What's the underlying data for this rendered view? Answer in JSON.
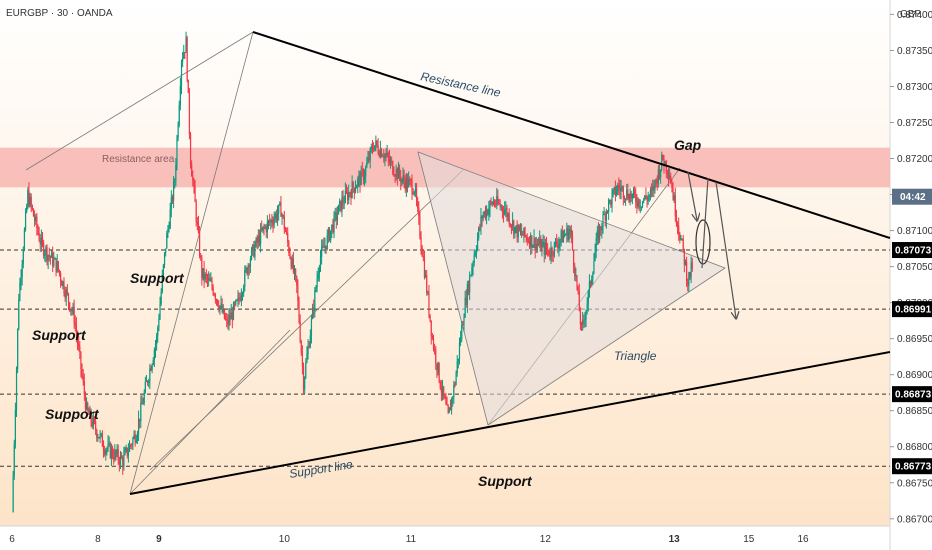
{
  "header": {
    "symbol": "EURGBP · 30 · OANDA"
  },
  "axis": {
    "currency": "GBP"
  },
  "colors": {
    "up": "#089981",
    "down": "#f23645",
    "resistance_area": "#f8b6b2",
    "background_top": "#ffffff",
    "background_bottom": "#fde4c8",
    "price_tag": "#000000",
    "trend_line": "#000000",
    "helper_line": "#7a7a7a",
    "triangle_fill": "#e4dcdc"
  },
  "chart_data": {
    "type": "candlestick",
    "instrument": "EURGBP",
    "timeframe": "30",
    "source": "OANDA",
    "ylim": [
      0.8669,
      0.8742
    ],
    "y_ticks": [
      0.874,
      0.8735,
      0.873,
      0.8725,
      0.872,
      0.8715,
      0.871,
      0.8705,
      0.87,
      0.8695,
      0.869,
      0.8685,
      0.868,
      0.8675,
      0.867
    ],
    "y_tick_labels": [
      "0.87400",
      "0.87350",
      "0.87300",
      "0.87250",
      "0.87200",
      "0.87150",
      "0.87100",
      "0.87050",
      "0.87000",
      "0.86950",
      "0.86900",
      "0.86850",
      "0.86800",
      "0.86750",
      "0.86700"
    ],
    "x_ticks": [
      {
        "label": "6",
        "bar": 0
      },
      {
        "label": "8",
        "bar": 76
      },
      {
        "label": "9",
        "bar": 130
      },
      {
        "label": "10",
        "bar": 241
      },
      {
        "label": "11",
        "bar": 353
      },
      {
        "label": "12",
        "bar": 472
      },
      {
        "label": "13",
        "bar": 586
      },
      {
        "label": "15",
        "bar": 652
      },
      {
        "label": "16",
        "bar": 700
      }
    ],
    "bars_total": 780,
    "price_path": [
      [
        0,
        0.8671
      ],
      [
        6,
        0.8701
      ],
      [
        14,
        0.8715
      ],
      [
        26,
        0.8708
      ],
      [
        40,
        0.8705
      ],
      [
        55,
        0.8698
      ],
      [
        66,
        0.8685
      ],
      [
        82,
        0.868
      ],
      [
        98,
        0.8678
      ],
      [
        110,
        0.8682
      ],
      [
        118,
        0.8688
      ],
      [
        128,
        0.8695
      ],
      [
        136,
        0.8708
      ],
      [
        144,
        0.8717
      ],
      [
        150,
        0.8734
      ],
      [
        154,
        0.8736
      ],
      [
        158,
        0.872
      ],
      [
        168,
        0.8704
      ],
      [
        178,
        0.8702
      ],
      [
        190,
        0.8697
      ],
      [
        200,
        0.87
      ],
      [
        210,
        0.8706
      ],
      [
        222,
        0.871
      ],
      [
        238,
        0.8713
      ],
      [
        252,
        0.8702
      ],
      [
        258,
        0.8689
      ],
      [
        264,
        0.8696
      ],
      [
        272,
        0.8706
      ],
      [
        282,
        0.871
      ],
      [
        292,
        0.8714
      ],
      [
        302,
        0.8716
      ],
      [
        312,
        0.8718
      ],
      [
        320,
        0.8722
      ],
      [
        328,
        0.8721
      ],
      [
        336,
        0.8719
      ],
      [
        346,
        0.8717
      ],
      [
        356,
        0.8716
      ],
      [
        364,
        0.8706
      ],
      [
        372,
        0.8695
      ],
      [
        380,
        0.8688
      ],
      [
        386,
        0.8684
      ],
      [
        392,
        0.8689
      ],
      [
        400,
        0.8699
      ],
      [
        408,
        0.8706
      ],
      [
        416,
        0.8712
      ],
      [
        426,
        0.8714
      ],
      [
        436,
        0.8713
      ],
      [
        446,
        0.871
      ],
      [
        456,
        0.8709
      ],
      [
        466,
        0.8708
      ],
      [
        476,
        0.8707
      ],
      [
        486,
        0.8709
      ],
      [
        494,
        0.871
      ],
      [
        500,
        0.8702
      ],
      [
        504,
        0.8696
      ],
      [
        510,
        0.8701
      ],
      [
        518,
        0.8709
      ],
      [
        526,
        0.8713
      ],
      [
        536,
        0.8716
      ],
      [
        546,
        0.8715
      ],
      [
        556,
        0.8714
      ],
      [
        566,
        0.8715
      ],
      [
        576,
        0.872
      ],
      [
        582,
        0.8718
      ],
      [
        588,
        0.8712
      ],
      [
        594,
        0.8707
      ],
      [
        598,
        0.8703
      ],
      [
        602,
        0.8705
      ]
    ],
    "last_price": 0.87073,
    "countdown": "04:42",
    "levels": [
      0.87073,
      0.86991,
      0.86873,
      0.86773
    ],
    "level_labels": [
      "0.87073",
      "0.86991",
      "0.86873",
      "0.86773"
    ],
    "resistance_area": [
      0.8716,
      0.87215
    ],
    "annotations": {
      "resistance_line": "Resistance line",
      "resistance_area": "Resistance area",
      "support_line": "Support line",
      "triangle": "Triangle",
      "gap": "Gap",
      "support": "Support"
    }
  }
}
